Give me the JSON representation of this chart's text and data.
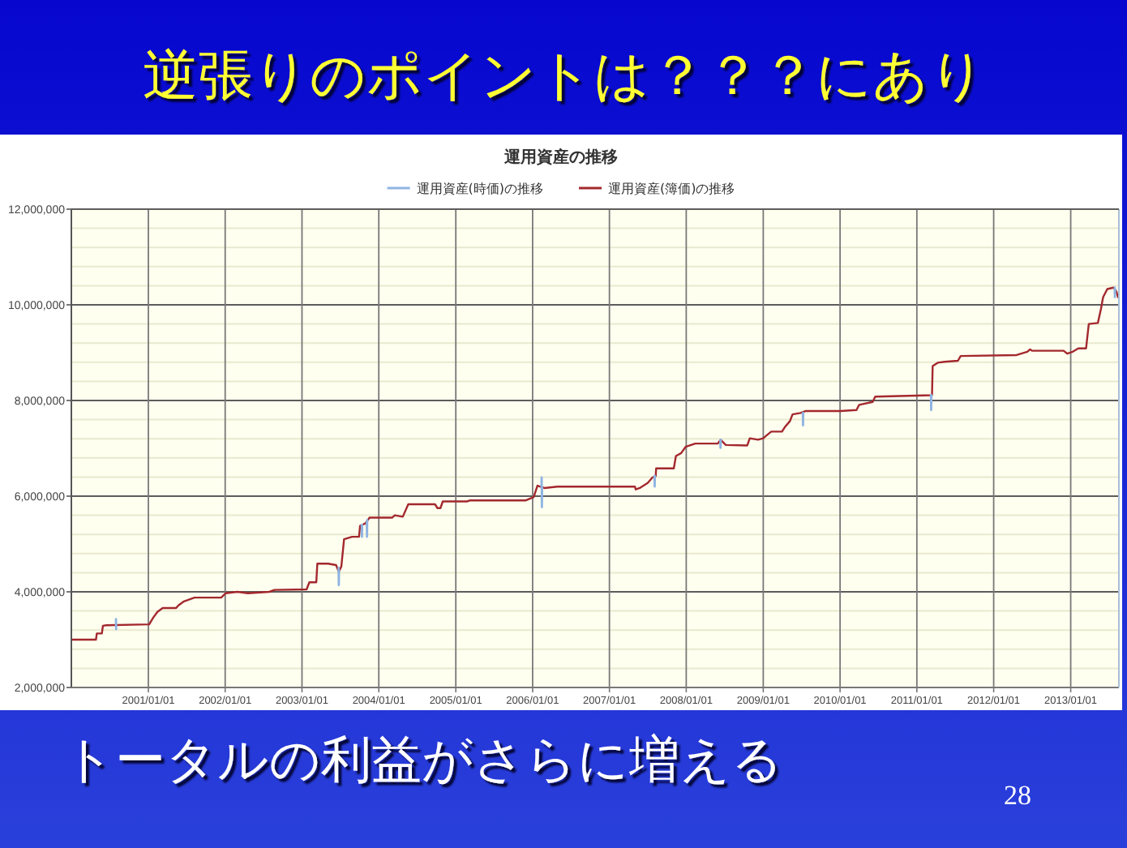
{
  "chart_data": {
    "type": "line",
    "title": "運用資産の推移",
    "annotations": [
      "逆張りのポイントは？？？にあり",
      "トータルの利益がさらに増える",
      "28"
    ],
    "xlim": [
      "2000-01-01",
      "2013-08-18"
    ],
    "xticks": [
      {
        "value": "2001-01-01",
        "label": "2001/01/01"
      },
      {
        "value": "2002-01-01",
        "label": "2002/01/01"
      },
      {
        "value": "2003-01-01",
        "label": "2003/01/01"
      },
      {
        "value": "2004-01-01",
        "label": "2004/01/01"
      },
      {
        "value": "2005-01-01",
        "label": "2005/01/01"
      },
      {
        "value": "2006-01-01",
        "label": "2006/01/01"
      },
      {
        "value": "2007-01-01",
        "label": "2007/01/01"
      },
      {
        "value": "2008-01-01",
        "label": "2008/01/01"
      },
      {
        "value": "2009-01-01",
        "label": "2009/01/01"
      },
      {
        "value": "2010-01-01",
        "label": "2010/01/01"
      },
      {
        "value": "2011-01-01",
        "label": "2011/01/01"
      },
      {
        "value": "2012-01-01",
        "label": "2012/01/01"
      },
      {
        "value": "2013-01-01",
        "label": "2013/01/01"
      }
    ],
    "ylim": [
      2000000,
      12000000
    ],
    "yticks": [
      {
        "value": 2000000,
        "label": "2,000,000"
      },
      {
        "value": 2400000,
        "label": null
      },
      {
        "value": 2800000,
        "label": null
      },
      {
        "value": 3200000,
        "label": null
      },
      {
        "value": 3600000,
        "label": null
      },
      {
        "value": 4000000,
        "label": "4,000,000"
      },
      {
        "value": 4400000,
        "label": null
      },
      {
        "value": 4800000,
        "label": null
      },
      {
        "value": 5200000,
        "label": null
      },
      {
        "value": 5600000,
        "label": null
      },
      {
        "value": 6000000,
        "label": "6,000,000"
      },
      {
        "value": 6400000,
        "label": null
      },
      {
        "value": 6800000,
        "label": null
      },
      {
        "value": 7200000,
        "label": null
      },
      {
        "value": 7600000,
        "label": null
      },
      {
        "value": 8000000,
        "label": "8,000,000"
      },
      {
        "value": 8400000,
        "label": null
      },
      {
        "value": 8800000,
        "label": null
      },
      {
        "value": 9200000,
        "label": null
      },
      {
        "value": 9600000,
        "label": null
      },
      {
        "value": 10000000,
        "label": "10,000,000"
      },
      {
        "value": 10400000,
        "label": null
      },
      {
        "value": 10800000,
        "label": null
      },
      {
        "value": 11200000,
        "label": null
      },
      {
        "value": 11600000,
        "label": null
      },
      {
        "value": 12000000,
        "label": "12,000,000"
      }
    ],
    "grid": true,
    "legend": "top",
    "line_style": "solid",
    "series": [
      {
        "name": "運用資産(時価)の推移",
        "color": "#8eb4e3",
        "x": [
          "2000-07-31",
          "2000-08-01",
          null,
          "2003-06-24",
          "2003-06-25",
          "2003-06-26",
          null,
          "2003-10-12",
          "2003-10-13",
          "2003-10-14",
          null,
          "2003-11-05",
          "2003-11-06",
          "2003-11-07",
          null,
          "2006-02-12",
          "2006-02-13",
          "2006-02-14",
          "2006-02-15",
          null,
          "2007-08-03",
          "2007-08-04",
          "2007-08-05",
          null,
          "2008-06-11",
          "2008-06-12",
          "2008-06-13",
          null,
          "2009-07-08",
          "2009-07-09",
          "2009-07-10",
          null,
          "2011-03-09",
          "2011-03-10",
          "2011-03-11",
          null,
          "2013-07-29",
          "2013-07-30",
          "2013-07-31"
        ],
        "values": [
          3430000,
          3220000,
          null,
          4500000,
          4140000,
          4450000,
          null,
          5400000,
          5150000,
          5400000,
          null,
          5450000,
          5150000,
          5500000,
          null,
          6200000,
          6390000,
          5770000,
          6180000,
          null,
          6420000,
          6200000,
          6420000,
          null,
          7170000,
          7010000,
          7180000,
          null,
          7740000,
          7480000,
          7740000,
          null,
          8110000,
          7800000,
          8110000,
          null,
          10360000,
          10160000,
          10330000
        ]
      },
      {
        "name": "運用資産(簿価)の推移",
        "color": "#a3282d",
        "x": [
          "2000-01-01",
          "2000-04-27",
          "2000-05-01",
          "2000-05-25",
          "2000-05-30",
          "2000-06-15",
          "2001-01-05",
          "2001-01-24",
          "2001-02-13",
          "2001-03-10",
          "2001-05-12",
          "2001-05-25",
          "2001-06-19",
          "2001-08-08",
          "2001-12-13",
          "2002-01-03",
          "2002-02-28",
          "2002-04-19",
          "2002-07-30",
          "2002-08-24",
          "2003-01-23",
          "2003-02-05",
          "2003-03-10",
          "2003-03-15",
          "2003-05-05",
          "2003-06-12",
          "2003-06-25",
          "2003-07-07",
          "2003-07-20",
          "2003-08-27",
          "2003-09-29",
          "2003-10-04",
          "2003-10-29",
          "2003-11-18",
          "2004-03-04",
          "2004-03-17",
          "2004-04-24",
          "2004-05-20",
          "2004-09-24",
          "2004-10-06",
          "2004-10-20",
          "2004-10-31",
          "2005-02-23",
          "2005-03-08",
          "2005-11-28",
          "2006-01-06",
          "2006-01-24",
          "2006-02-26",
          "2006-04-28",
          "2006-09-03",
          "2007-05-02",
          "2007-05-06",
          "2007-05-25",
          "2007-07-03",
          "2007-07-24",
          "2007-08-09",
          "2007-08-11",
          "2007-11-03",
          "2007-11-13",
          "2007-12-08",
          "2007-12-29",
          "2008-02-13",
          "2008-05-30",
          "2008-06-12",
          "2008-07-07",
          "2008-10-17",
          "2008-10-29",
          "2008-12-07",
          "2009-01-01",
          "2009-01-14",
          "2009-02-08",
          "2009-03-31",
          "2009-04-13",
          "2009-05-08",
          "2009-05-20",
          "2009-06-27",
          "2009-07-23",
          "2010-01-03",
          "2010-03-20",
          "2010-04-02",
          "2010-06-05",
          "2010-06-17",
          "2011-03-14",
          "2011-03-17",
          "2011-04-10",
          "2011-05-13",
          "2011-07-15",
          "2011-07-28",
          "2012-04-19",
          "2012-06-09",
          "2012-06-22",
          "2012-07-01",
          "2012-11-28",
          "2012-12-16",
          "2013-01-11",
          "2013-02-06",
          "2013-03-15",
          "2013-03-28",
          "2013-05-10",
          "2013-05-25",
          "2013-06-04",
          "2013-06-24",
          "2013-07-24",
          "2013-08-06",
          "2013-08-14"
        ],
        "values": [
          3000000,
          3000000,
          3130000,
          3130000,
          3290000,
          3300000,
          3320000,
          3460000,
          3580000,
          3660000,
          3660000,
          3720000,
          3800000,
          3880000,
          3880000,
          3970000,
          4000000,
          3970000,
          4000000,
          4040000,
          4050000,
          4200000,
          4200000,
          4590000,
          4590000,
          4560000,
          4420000,
          4530000,
          5100000,
          5150000,
          5150000,
          5380000,
          5430000,
          5550000,
          5550000,
          5600000,
          5570000,
          5830000,
          5830000,
          5750000,
          5750000,
          5890000,
          5890000,
          5910000,
          5910000,
          5980000,
          6220000,
          6170000,
          6200000,
          6200000,
          6200000,
          6140000,
          6170000,
          6280000,
          6390000,
          6420000,
          6580000,
          6580000,
          6840000,
          6900000,
          7030000,
          7100000,
          7100000,
          7180000,
          7070000,
          7060000,
          7210000,
          7180000,
          7210000,
          7260000,
          7350000,
          7350000,
          7440000,
          7570000,
          7710000,
          7740000,
          7780000,
          7780000,
          7800000,
          7910000,
          7970000,
          8080000,
          8110000,
          8720000,
          8790000,
          8810000,
          8830000,
          8930000,
          8950000,
          9020000,
          9070000,
          9040000,
          9040000,
          8980000,
          9020000,
          9090000,
          9090000,
          9600000,
          9620000,
          9920000,
          10160000,
          10330000,
          10360000,
          10280000,
          10160000
        ]
      }
    ]
  }
}
